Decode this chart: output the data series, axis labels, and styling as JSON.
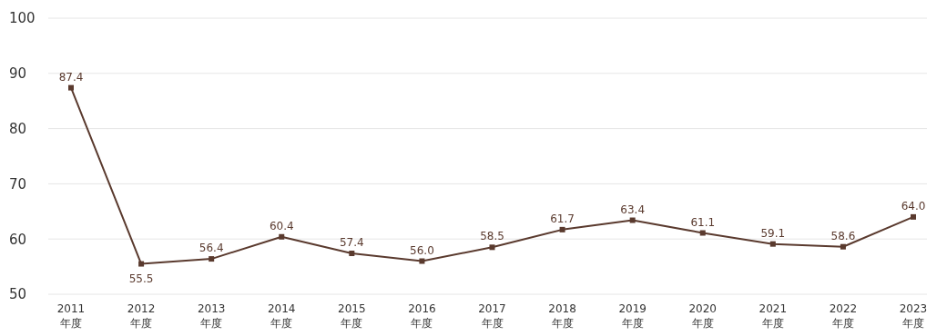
{
  "chart_data": {
    "type": "line",
    "categories": [
      "2011\n年度",
      "2012\n年度",
      "2013\n年度",
      "2014\n年度",
      "2015\n年度",
      "2016\n年度",
      "2017\n年度",
      "2018\n年度",
      "2019\n年度",
      "2020\n年度",
      "2021\n年度",
      "2022\n年度",
      "2023\n年度"
    ],
    "series": [
      {
        "color": "#5a3a2e",
        "values": [
          87.4,
          55.5,
          56.4,
          60.4,
          57.4,
          56.0,
          58.5,
          61.7,
          63.4,
          61.1,
          59.1,
          58.6,
          64.0
        ],
        "value_labels": [
          "87.4",
          "55.5",
          "56.4",
          "60.4",
          "57.4",
          "56.0",
          "58.5",
          "61.7",
          "63.4",
          "61.1",
          "59.1",
          "58.6",
          "64.0"
        ]
      }
    ],
    "ylim": [
      50,
      100
    ],
    "yticks": [
      50,
      60,
      70,
      80,
      90,
      100
    ],
    "grid": "y",
    "marker": "square"
  }
}
